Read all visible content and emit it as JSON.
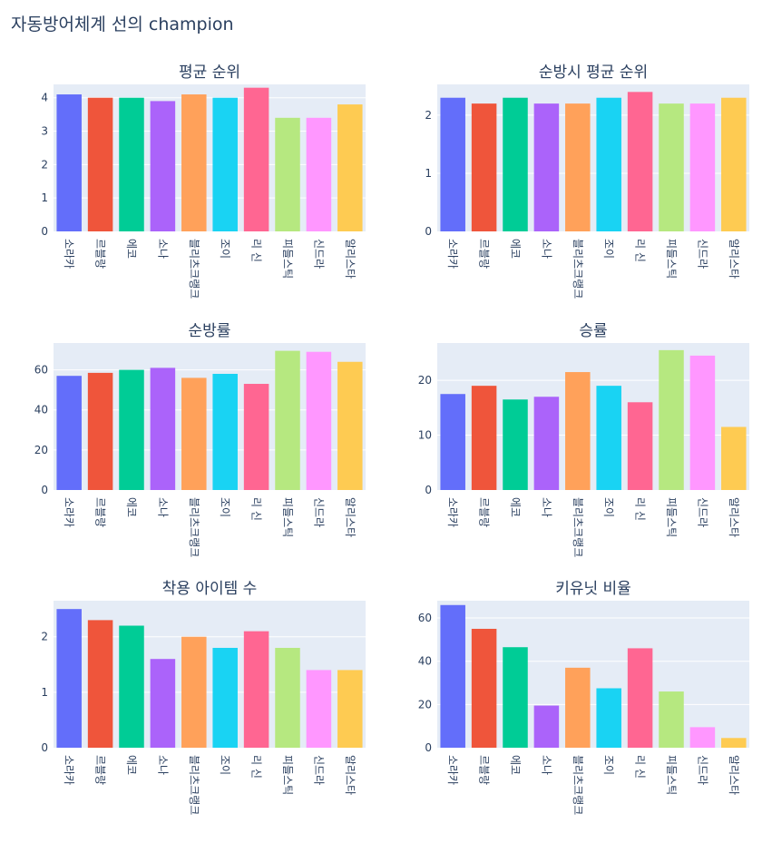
{
  "figure": {
    "title": "자동방어체계 선의 champion"
  },
  "colors": [
    "#636efa",
    "#EF553B",
    "#00cc96",
    "#ab63fa",
    "#FFA15A",
    "#19d3f3",
    "#FF6692",
    "#B6E880",
    "#FF97FF",
    "#FECB52"
  ],
  "chart_data": [
    {
      "type": "bar",
      "title": "평균 순위",
      "categories": [
        "소라카",
        "르블랑",
        "에코",
        "소나",
        "블리츠크랭크",
        "조이",
        "리 신",
        "피들스틱",
        "신드라",
        "알리스타"
      ],
      "values": [
        4.1,
        4.0,
        4.0,
        3.9,
        4.1,
        4.0,
        4.3,
        3.4,
        3.4,
        3.8
      ],
      "ylim": [
        0,
        4.4
      ],
      "yticks": [
        0,
        1,
        2,
        3,
        4
      ]
    },
    {
      "type": "bar",
      "title": "순방시 평균 순위",
      "categories": [
        "소라카",
        "르블랑",
        "에코",
        "소나",
        "블리츠크랭크",
        "조이",
        "리 신",
        "피들스틱",
        "신드라",
        "알리스타"
      ],
      "values": [
        2.3,
        2.2,
        2.3,
        2.2,
        2.2,
        2.3,
        2.4,
        2.2,
        2.2,
        2.3
      ],
      "ylim": [
        0,
        2.53
      ],
      "yticks": [
        0,
        1,
        2
      ]
    },
    {
      "type": "bar",
      "title": "순방률",
      "categories": [
        "소라카",
        "르블랑",
        "에코",
        "소나",
        "블리츠크랭크",
        "조이",
        "리 신",
        "피들스틱",
        "신드라",
        "알리스타"
      ],
      "values": [
        57,
        58.5,
        60,
        61,
        56,
        58,
        53,
        69.5,
        69,
        64
      ],
      "ylim": [
        0,
        73.4
      ],
      "yticks": [
        0,
        20,
        40,
        60
      ]
    },
    {
      "type": "bar",
      "title": "승률",
      "categories": [
        "소라카",
        "르블랑",
        "에코",
        "소나",
        "블리츠크랭크",
        "조이",
        "리 신",
        "피들스틱",
        "신드라",
        "알리스타"
      ],
      "values": [
        17.5,
        19,
        16.5,
        17,
        21.5,
        19,
        16,
        25.5,
        24.5,
        11.5
      ],
      "ylim": [
        0,
        26.8
      ],
      "yticks": [
        0,
        10,
        20
      ]
    },
    {
      "type": "bar",
      "title": "착용 아이템 수",
      "categories": [
        "소라카",
        "르블랑",
        "에코",
        "소나",
        "블리츠크랭크",
        "조이",
        "리 신",
        "피들스틱",
        "신드라",
        "알리스타"
      ],
      "values": [
        2.5,
        2.3,
        2.2,
        1.6,
        2.0,
        1.8,
        2.1,
        1.8,
        1.4,
        1.4
      ],
      "ylim": [
        0,
        2.65
      ],
      "yticks": [
        0,
        1,
        2
      ]
    },
    {
      "type": "bar",
      "title": "키유닛 비율",
      "categories": [
        "소라카",
        "르블랑",
        "에코",
        "소나",
        "블리츠크랭크",
        "조이",
        "리 신",
        "피들스틱",
        "신드라",
        "알리스타"
      ],
      "values": [
        66,
        55,
        46.5,
        19.5,
        37,
        27.5,
        46,
        26,
        9.5,
        4.5
      ],
      "ylim": [
        0,
        68
      ],
      "yticks": [
        0,
        20,
        40,
        60
      ]
    }
  ]
}
